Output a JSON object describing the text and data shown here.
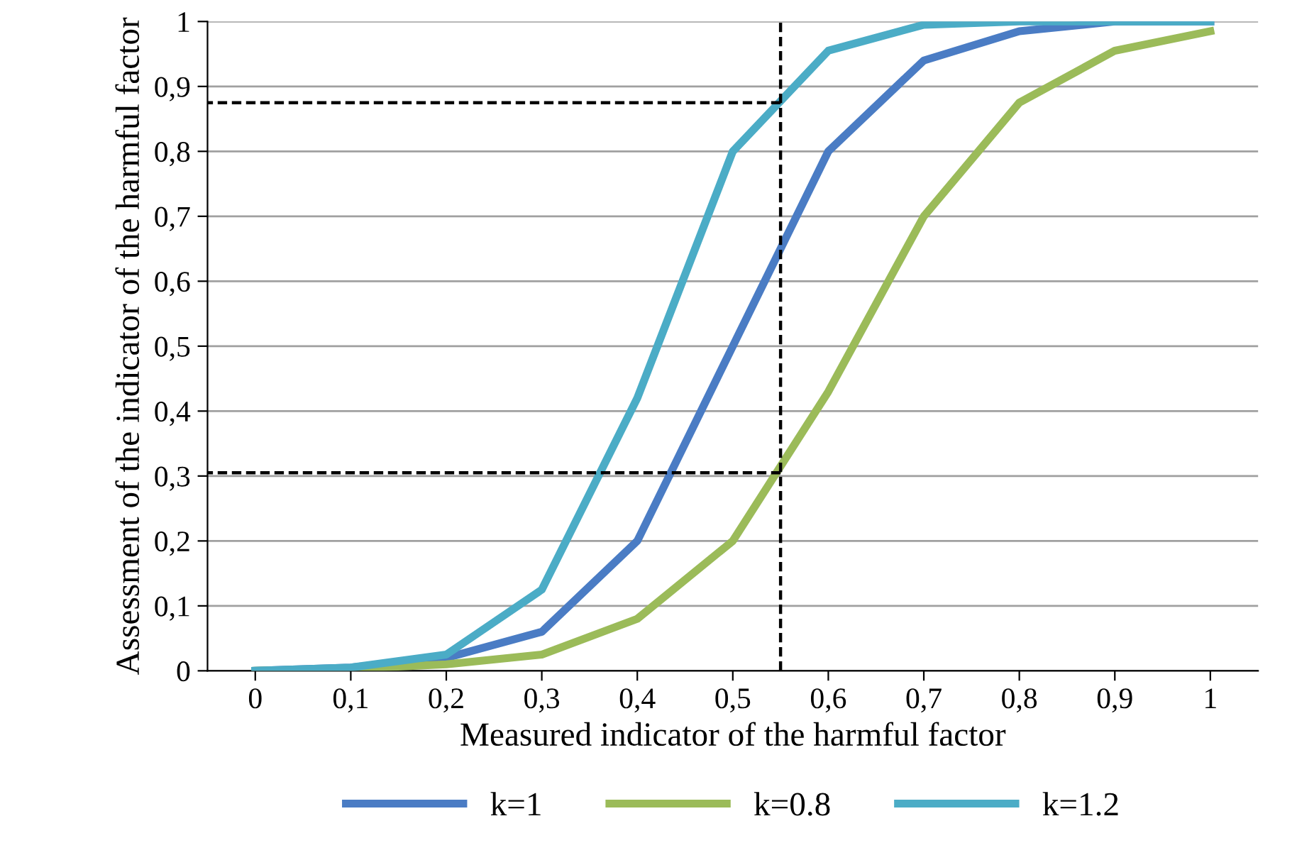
{
  "chart_data": {
    "type": "line",
    "xlabel": "Measured indicator of the harmful factor",
    "ylabel": "Assessment of the indicator of the harmful factor",
    "x": [
      0,
      0.1,
      0.2,
      0.3,
      0.4,
      0.5,
      0.6,
      0.7,
      0.8,
      0.9,
      1
    ],
    "xlim": [
      -0.05,
      1.05
    ],
    "xticks": [
      0,
      {
        "value": 0.1,
        "label": "0,1"
      },
      {
        "value": 0.2,
        "label": "0,2"
      },
      {
        "value": 0.3,
        "label": "0,3"
      },
      {
        "value": 0.4,
        "label": "0,4"
      },
      {
        "value": 0.5,
        "label": "0,5"
      },
      {
        "value": 0.6,
        "label": "0,6"
      },
      {
        "value": 0.7,
        "label": "0,7"
      },
      {
        "value": 0.8,
        "label": "0,8"
      },
      {
        "value": 0.9,
        "label": "0,9"
      },
      1
    ],
    "ylim": [
      0,
      1
    ],
    "yticks": [
      0,
      {
        "value": 0.1,
        "label": "0,1"
      },
      {
        "value": 0.2,
        "label": "0,2"
      },
      {
        "value": 0.3,
        "label": "0,3"
      },
      {
        "value": 0.4,
        "label": "0,4"
      },
      {
        "value": 0.5,
        "label": "0,5"
      },
      {
        "value": 0.6,
        "label": "0,6"
      },
      {
        "value": 0.7,
        "label": "0,7"
      },
      {
        "value": 0.8,
        "label": "0,8"
      },
      {
        "value": 0.9,
        "label": "0,9"
      },
      1
    ],
    "series": [
      {
        "name": "k=1",
        "color": "#4a7cc4",
        "values": [
          0,
          0.005,
          0.02,
          0.06,
          0.2,
          0.5,
          0.8,
          0.94,
          0.985,
          1,
          1
        ]
      },
      {
        "name": "k=0.8",
        "color": "#9bbb59",
        "values": [
          0,
          0.003,
          0.01,
          0.025,
          0.08,
          0.2,
          0.43,
          0.7,
          0.875,
          0.955,
          0.985
        ]
      },
      {
        "name": "k=1.2",
        "color": "#4bacc6",
        "values": [
          0,
          0.005,
          0.025,
          0.125,
          0.42,
          0.8,
          0.955,
          0.995,
          1,
          1,
          1
        ]
      }
    ],
    "ref_lines": [
      {
        "axis": "x",
        "value": 0.55,
        "color": "#000000",
        "line_style": "dashed"
      },
      {
        "axis": "y",
        "value": 0.875,
        "color": "#000000",
        "line_style": "dashed"
      },
      {
        "axis": "y",
        "value": 0.305,
        "color": "#000000",
        "line_style": "dashed"
      }
    ],
    "grid": "y",
    "legend": "bottom",
    "marker": "none",
    "line_style": "solid"
  }
}
